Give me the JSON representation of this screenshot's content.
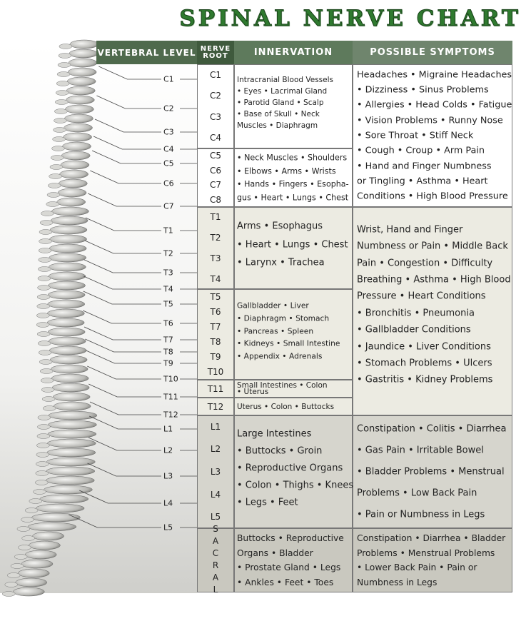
{
  "title": "SPINAL NERVE CHART",
  "headers": {
    "vertebral_level": "VERTEBRAL LEVEL",
    "nerve_root": "NERVE ROOT",
    "innervation": "INNERVATION",
    "symptoms": "POSSIBLE SYMPTOMS"
  },
  "vertebrae": [
    "C1",
    "C2",
    "C3",
    "C4",
    "C5",
    "C6",
    "C7",
    "T1",
    "T2",
    "T3",
    "T4",
    "T5",
    "T6",
    "T7",
    "T8",
    "T9",
    "T10",
    "T11",
    "T12",
    "L1",
    "L2",
    "L3",
    "L4",
    "L5"
  ],
  "regions": [
    {
      "groups": [
        {
          "roots": [
            "C1",
            "C2",
            "C3",
            "C4"
          ],
          "innervation": [
            "Intracranial Blood Vessels",
            "• Eyes • Lacrimal Gland",
            "• Parotid Gland • Scalp",
            "• Base of Skull • Neck",
            "Muscles • Diaphragm"
          ]
        },
        {
          "roots": [
            "C5",
            "C6",
            "C7",
            "C8"
          ],
          "innervation": [
            "• Neck Muscles • Shoulders",
            "• Elbows • Arms • Wrists",
            "• Hands • Fingers • Esopha-",
            "gus • Heart • Lungs • Chest"
          ]
        }
      ],
      "symptoms": [
        "Headaches • Migraine Headaches",
        "• Dizziness • Sinus Problems",
        "• Allergies • Head Colds • Fatigue",
        "• Vision Problems • Runny Nose",
        "• Sore Throat • Stiff Neck",
        "• Cough • Croup • Arm Pain",
        "• Hand and Finger Numbness",
        "or Tingling • Asthma • Heart",
        "Conditions • High Blood Pressure"
      ]
    },
    {
      "groups": [
        {
          "roots": [
            "T1",
            "T2",
            "T3",
            "T4"
          ],
          "innervation": [
            "Arms • Esophagus",
            "• Heart • Lungs • Chest",
            "• Larynx • Trachea"
          ]
        },
        {
          "roots": [
            "T5",
            "T6",
            "T7",
            "T8",
            "T9",
            "T10"
          ],
          "innervation": [
            "Gallbladder • Liver",
            "• Diaphragm • Stomach",
            "• Pancreas • Spleen",
            "• Kidneys • Small Intestine",
            "• Appendix • Adrenals"
          ]
        },
        {
          "roots": [
            "T11"
          ],
          "innervation": [
            "Small Intestines • Colon",
            "• Uterus"
          ]
        },
        {
          "roots": [
            "T12"
          ],
          "innervation": [
            "Uterus • Colon • Buttocks"
          ]
        }
      ],
      "symptoms": [
        "Wrist, Hand and Finger",
        "Numbness or Pain • Middle Back",
        "Pain • Congestion • Difficulty",
        "Breathing • Asthma • High Blood",
        "Pressure • Heart Conditions",
        "• Bronchitis • Pneumonia",
        "• Gallbladder Conditions",
        "• Jaundice • Liver Conditions",
        "• Stomach Problems • Ulcers",
        "• Gastritis • Kidney Problems"
      ]
    },
    {
      "groups": [
        {
          "roots": [
            "L1",
            "L2",
            "L3",
            "L4",
            "L5"
          ],
          "innervation": [
            "Large Intestines",
            "• Buttocks • Groin",
            "• Reproductive Organs",
            "• Colon • Thighs • Knees",
            "• Legs • Feet"
          ]
        }
      ],
      "symptoms": [
        "Constipation • Colitis • Diarrhea",
        "• Gas Pain • Irritable Bowel",
        "• Bladder Problems • Menstrual",
        "Problems • Low Back Pain",
        "• Pain or Numbness in Legs"
      ]
    },
    {
      "groups": [
        {
          "roots": [
            "SACRAL"
          ],
          "innervation": [
            "Buttocks • Reproductive",
            "Organs • Bladder",
            "• Prostate Gland • Legs",
            "• Ankles • Feet • Toes"
          ]
        }
      ],
      "symptoms": [
        "Constipation • Diarrhea • Bladder",
        "Problems • Menstrual Problems",
        "• Lower Back Pain • Pain or",
        "Numbness in Legs"
      ]
    }
  ]
}
